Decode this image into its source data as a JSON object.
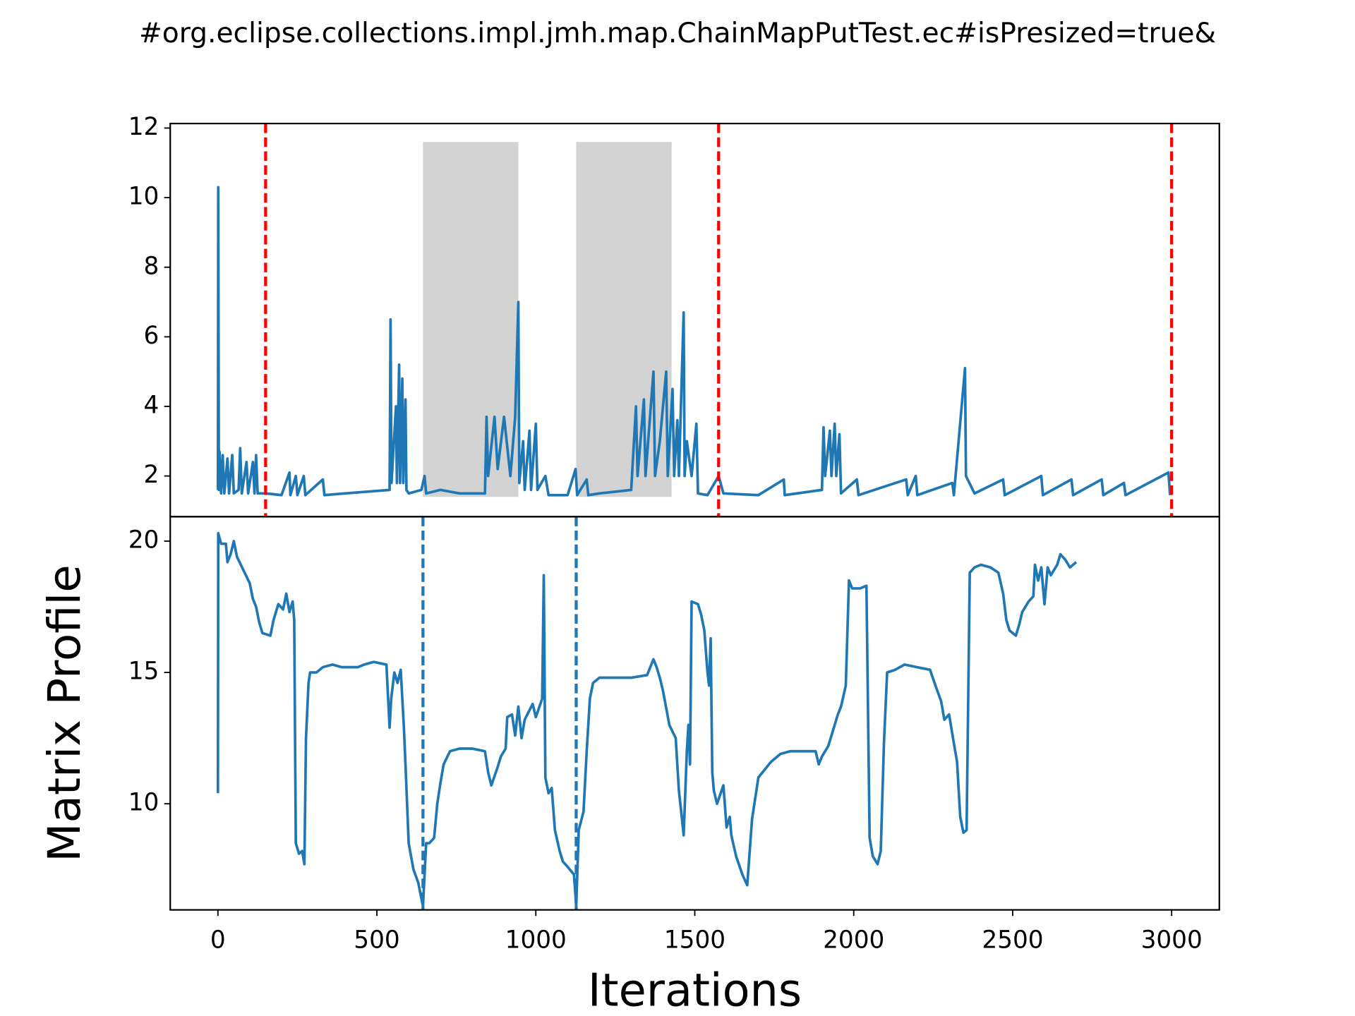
{
  "chart_data": [
    {
      "type": "line",
      "title": "#org.eclipse.collections.impl.jmh.map.ChainMapPutTest.ec#isPresized=true&",
      "color": "#1f77b4",
      "xlim": [
        -150,
        3150
      ],
      "ylim": [
        0.83,
        12.13
      ],
      "yticks": [
        2,
        4,
        6,
        8,
        10,
        12
      ],
      "vlines": {
        "x": [
          150,
          1575,
          3000
        ],
        "color": "#ff0000"
      },
      "spans": [
        {
          "x": [
            645,
            945
          ],
          "y": [
            1.4,
            11.6
          ]
        },
        {
          "x": [
            1127,
            1427
          ],
          "y": [
            1.4,
            11.6
          ]
        }
      ],
      "span_color": "#d3d3d3",
      "x": [
        0,
        1,
        3,
        5,
        10,
        15,
        20,
        30,
        35,
        45,
        50,
        65,
        70,
        75,
        90,
        95,
        110,
        115,
        120,
        125,
        150,
        200,
        225,
        228,
        245,
        250,
        270,
        275,
        330,
        335,
        400,
        540,
        543,
        546,
        560,
        563,
        570,
        573,
        580,
        583,
        590,
        593,
        600,
        640,
        650,
        655,
        700,
        760,
        840,
        845,
        850,
        870,
        880,
        900,
        920,
        935,
        945,
        948,
        960,
        965,
        980,
        985,
        1000,
        1005,
        1030,
        1040,
        1100,
        1125,
        1130,
        1160,
        1165,
        1200,
        1300,
        1315,
        1320,
        1340,
        1345,
        1370,
        1375,
        1390,
        1410,
        1415,
        1430,
        1435,
        1445,
        1450,
        1465,
        1468,
        1475,
        1490,
        1505,
        1510,
        1540,
        1575,
        1590,
        1700,
        1780,
        1783,
        1900,
        1905,
        1910,
        1925,
        1930,
        1940,
        1945,
        1955,
        1960,
        2010,
        2015,
        2165,
        2170,
        2195,
        2200,
        2310,
        2315,
        2350,
        2353,
        2380,
        2470,
        2475,
        2590,
        2595,
        2685,
        2690,
        2780,
        2785,
        2850,
        2855,
        2990,
        2995
      ],
      "values": [
        1.6,
        10.3,
        1.6,
        2.7,
        1.5,
        2.6,
        1.5,
        2.5,
        1.5,
        2.6,
        1.5,
        1.6,
        2.8,
        1.5,
        2.4,
        1.5,
        2.4,
        1.5,
        2.6,
        1.5,
        1.5,
        1.45,
        2.1,
        1.45,
        2.0,
        1.45,
        2.0,
        1.45,
        1.9,
        1.45,
        1.5,
        1.6,
        6.5,
        1.8,
        4.0,
        1.8,
        5.2,
        1.8,
        4.8,
        1.8,
        4.2,
        1.6,
        1.5,
        1.6,
        2.0,
        1.5,
        1.6,
        1.5,
        1.5,
        3.7,
        2.0,
        3.7,
        2.2,
        3.7,
        2.0,
        3.7,
        7.0,
        1.8,
        3.0,
        1.6,
        3.3,
        1.6,
        3.5,
        1.6,
        2.0,
        1.45,
        1.45,
        2.2,
        1.45,
        1.9,
        1.45,
        1.5,
        1.6,
        4.0,
        2.0,
        4.2,
        2.0,
        5.0,
        2.0,
        3.0,
        5.0,
        2.0,
        4.5,
        2.0,
        3.6,
        2.0,
        6.7,
        2.0,
        3.0,
        2.0,
        3.5,
        1.5,
        1.45,
        2.0,
        1.5,
        1.45,
        1.9,
        1.45,
        1.6,
        3.4,
        2.0,
        3.3,
        2.0,
        3.5,
        2.0,
        3.2,
        1.5,
        1.9,
        1.45,
        1.9,
        1.45,
        2.0,
        1.45,
        1.8,
        1.45,
        5.1,
        2.0,
        1.5,
        1.9,
        1.45,
        2.0,
        1.45,
        1.9,
        1.45,
        1.9,
        1.45,
        1.8,
        1.45,
        2.1,
        1.45
      ]
    },
    {
      "type": "line",
      "xlabel": "Iterations",
      "ylabel": "Matrix Profile",
      "color": "#1f77b4",
      "xlim": [
        -150,
        3150
      ],
      "xticks": [
        0,
        500,
        1000,
        1500,
        2000,
        2500,
        3000
      ],
      "ylim": [
        5.96,
        20.93
      ],
      "yticks": [
        10,
        15,
        20
      ],
      "vlines": {
        "x": [
          645,
          1127
        ],
        "color": "#1f77b4"
      },
      "x": [
        0,
        1,
        10,
        25,
        30,
        40,
        50,
        60,
        80,
        100,
        110,
        120,
        130,
        140,
        165,
        175,
        190,
        205,
        215,
        225,
        235,
        240,
        245,
        255,
        265,
        272,
        277,
        285,
        290,
        310,
        330,
        360,
        390,
        420,
        440,
        460,
        490,
        530,
        540,
        545,
        555,
        565,
        575,
        585,
        590,
        600,
        615,
        630,
        645,
        655,
        665,
        680,
        690,
        700,
        710,
        730,
        760,
        800,
        840,
        850,
        860,
        880,
        890,
        905,
        910,
        925,
        935,
        945,
        955,
        965,
        990,
        1000,
        1020,
        1025,
        1030,
        1040,
        1050,
        1060,
        1075,
        1085,
        1100,
        1120,
        1127,
        1135,
        1150,
        1160,
        1170,
        1180,
        1200,
        1250,
        1300,
        1350,
        1370,
        1380,
        1390,
        1400,
        1420,
        1440,
        1450,
        1460,
        1465,
        1475,
        1480,
        1485,
        1490,
        1510,
        1520,
        1530,
        1540,
        1545,
        1550,
        1555,
        1560,
        1570,
        1590,
        1600,
        1610,
        1615,
        1630,
        1650,
        1665,
        1680,
        1700,
        1720,
        1740,
        1770,
        1800,
        1850,
        1880,
        1890,
        1900,
        1910,
        1920,
        1940,
        1950,
        1960,
        1975,
        1985,
        1995,
        2020,
        2040,
        2050,
        2060,
        2075,
        2085,
        2095,
        2105,
        2130,
        2160,
        2200,
        2240,
        2260,
        2275,
        2285,
        2300,
        2315,
        2325,
        2335,
        2345,
        2355,
        2365,
        2380,
        2400,
        2430,
        2455,
        2470,
        2480,
        2490,
        2510,
        2520,
        2530,
        2550,
        2565,
        2570,
        2580,
        2590,
        2600,
        2610,
        2620,
        2640,
        2650,
        2665,
        2680,
        2700
      ],
      "values": [
        10.4,
        20.3,
        19.9,
        19.9,
        19.2,
        19.5,
        20.0,
        19.4,
        18.9,
        18.4,
        17.8,
        17.5,
        16.9,
        16.5,
        16.4,
        17.0,
        17.6,
        17.4,
        18.0,
        17.3,
        17.7,
        17.0,
        8.5,
        8.1,
        8.2,
        7.7,
        12.5,
        14.6,
        15.0,
        15.0,
        15.2,
        15.3,
        15.2,
        15.2,
        15.2,
        15.3,
        15.4,
        15.3,
        12.9,
        14.0,
        15.0,
        14.6,
        15.1,
        12.9,
        11.5,
        8.5,
        7.5,
        7.0,
        6.1,
        8.5,
        8.5,
        8.7,
        10.0,
        10.8,
        11.5,
        12.0,
        12.1,
        12.1,
        12.0,
        11.2,
        10.7,
        11.4,
        11.8,
        12.1,
        13.3,
        13.4,
        12.6,
        13.7,
        12.5,
        13.2,
        13.8,
        13.3,
        14.0,
        18.7,
        11.0,
        10.4,
        10.6,
        9.0,
        8.2,
        7.8,
        7.6,
        7.3,
        6.1,
        9.0,
        9.7,
        12.0,
        14.0,
        14.6,
        14.8,
        14.8,
        14.8,
        14.9,
        15.5,
        15.2,
        14.8,
        14.3,
        13.0,
        12.5,
        10.5,
        9.4,
        8.8,
        12.0,
        13.0,
        11.5,
        17.7,
        17.6,
        17.2,
        16.6,
        15.0,
        14.5,
        16.3,
        11.2,
        10.5,
        10.0,
        10.7,
        9.1,
        9.5,
        8.8,
        8.0,
        7.3,
        6.9,
        9.4,
        11.0,
        11.3,
        11.6,
        11.9,
        12.0,
        12.0,
        12.0,
        11.5,
        11.8,
        12.0,
        12.2,
        13.0,
        13.4,
        13.7,
        14.5,
        18.5,
        18.2,
        18.2,
        18.3,
        8.7,
        8.0,
        7.7,
        8.2,
        12.3,
        15.0,
        15.1,
        15.3,
        15.2,
        15.1,
        14.4,
        13.9,
        13.2,
        13.4,
        12.3,
        11.6,
        9.5,
        8.9,
        9.0,
        18.8,
        19.0,
        19.1,
        19.0,
        18.8,
        18.0,
        17.0,
        16.6,
        16.4,
        16.8,
        17.3,
        17.7,
        17.9,
        19.1,
        18.5,
        19.0,
        17.6,
        19.0,
        18.7,
        19.1,
        19.5,
        19.3,
        19.0,
        19.2
      ]
    }
  ]
}
